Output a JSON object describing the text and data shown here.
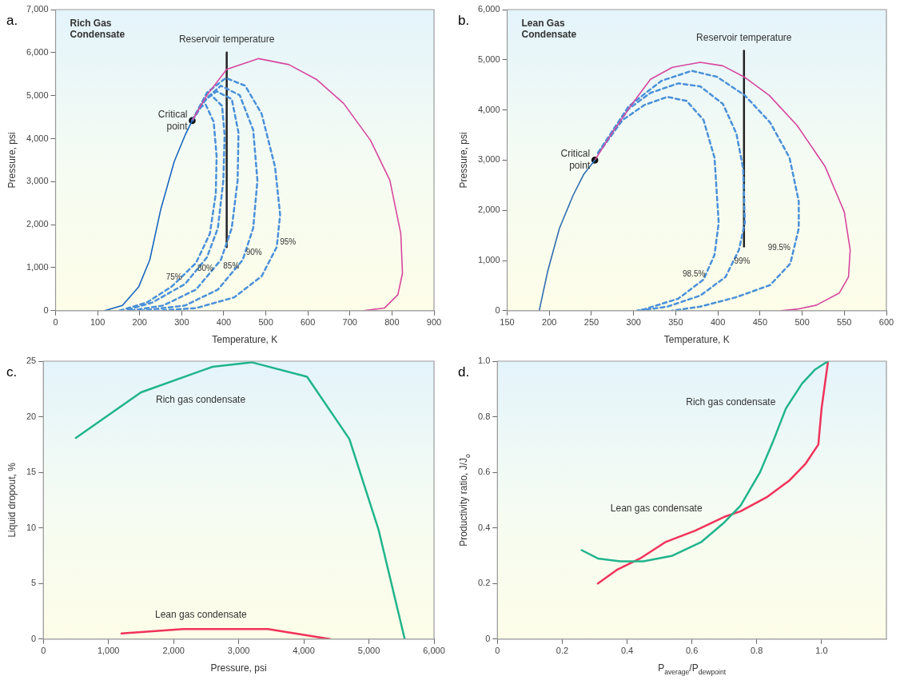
{
  "chart_data": [
    {
      "type": "line",
      "title": "Rich Gas Condensate",
      "xlabel": "Temperature, K",
      "ylabel": "Pressure, psi",
      "xlim": [
        0,
        900
      ],
      "ylim": [
        0,
        7000
      ],
      "xticks": [
        0,
        100,
        200,
        300,
        400,
        500,
        600,
        700,
        800,
        900
      ],
      "yticks": [
        0,
        {
          "value": 1000,
          "label": "1,000"
        },
        {
          "value": 2000,
          "label": "2,000"
        },
        {
          "value": 3000,
          "label": "3,000"
        },
        {
          "value": 4000,
          "label": "4,000"
        },
        {
          "value": 5000,
          "label": "5,000"
        },
        {
          "value": 6000,
          "label": "6,000"
        },
        {
          "value": 7000,
          "label": "7,000"
        }
      ],
      "series": [
        {
          "color": "#1a66c0",
          "x": [
            117,
            159,
            198,
            224,
            250,
            282,
            308,
            325
          ],
          "values": [
            0,
            120,
            560,
            1180,
            2350,
            3460,
            4080,
            4420
          ]
        },
        {
          "color": "#d6479e",
          "x": [
            325,
            360,
            407,
            483,
            555,
            620,
            685,
            749,
            795,
            821,
            825,
            814,
            782,
            733
          ],
          "values": [
            4420,
            5010,
            5610,
            5860,
            5720,
            5380,
            4820,
            3960,
            3030,
            1790,
            870,
            370,
            60,
            0
          ]
        },
        {
          "name": "95%",
          "color": "#4a90d9",
          "line_style": "dashed",
          "x": [
            325,
            360,
            405,
            451,
            490,
            522,
            534,
            526,
            490,
            425,
            334,
            243
          ],
          "values": [
            4420,
            5070,
            5410,
            5230,
            4580,
            3340,
            2230,
            1480,
            800,
            310,
            60,
            0
          ]
        },
        {
          "name": "90%",
          "color": "#4a90d9",
          "line_style": "dashed",
          "x": [
            325,
            360,
            393,
            438,
            470,
            480,
            470,
            445,
            386,
            308,
            204
          ],
          "values": [
            4420,
            4950,
            5230,
            5010,
            4200,
            3030,
            1920,
            1180,
            490,
            120,
            0
          ]
        },
        {
          "name": "85%",
          "color": "#4a90d9",
          "line_style": "dashed",
          "x": [
            325,
            354,
            383,
            419,
            435,
            433,
            419,
            393,
            334,
            256,
            178
          ],
          "values": [
            4420,
            4890,
            5100,
            4920,
            4140,
            3030,
            1920,
            1180,
            490,
            120,
            0
          ]
        },
        {
          "name": "80%",
          "color": "#4a90d9",
          "line_style": "dashed",
          "x": [
            325,
            347,
            370,
            396,
            402,
            399,
            386,
            360,
            308,
            230,
            165
          ],
          "values": [
            4420,
            4820,
            5010,
            4760,
            4080,
            3030,
            1920,
            1240,
            620,
            190,
            0
          ]
        },
        {
          "name": "75%",
          "color": "#4a90d9",
          "line_style": "dashed",
          "x": [
            325,
            344,
            357,
            376,
            383,
            381,
            367,
            334,
            276,
            217,
            152
          ],
          "values": [
            4420,
            4730,
            4790,
            4390,
            3590,
            2720,
            1790,
            1110,
            560,
            190,
            0
          ]
        },
        {
          "name": "Reservoir temperature",
          "color": "#222222",
          "x": [
            407,
            407
          ],
          "values": [
            1480,
            6000
          ]
        },
        {
          "name": "Critical point",
          "type": "scatter",
          "marker": "circle",
          "color": "#111111",
          "x": [
            325
          ],
          "values": [
            4420
          ]
        }
      ],
      "annotations": [
        "a."
      ]
    },
    {
      "type": "line",
      "title": "Lean Gas Condensate",
      "xlabel": "Temperature, K",
      "ylabel": "Pressure, psi",
      "xlim": [
        150,
        600
      ],
      "ylim": [
        0,
        6000
      ],
      "xticks": [
        150,
        200,
        250,
        300,
        350,
        400,
        450,
        500,
        550,
        600
      ],
      "yticks": [
        0,
        {
          "value": 1000,
          "label": "1,000"
        },
        {
          "value": 2000,
          "label": "2,000"
        },
        {
          "value": 3000,
          "label": "3,000"
        },
        {
          "value": 4000,
          "label": "4,000"
        },
        {
          "value": 5000,
          "label": "5,000"
        },
        {
          "value": 6000,
          "label": "6,000"
        }
      ],
      "series": [
        {
          "color": "#2f6db0",
          "x": [
            188,
            198,
            212,
            228,
            241,
            254
          ],
          "values": [
            0,
            780,
            1640,
            2290,
            2720,
            3000
          ]
        },
        {
          "color": "#d6479e",
          "x": [
            254,
            274,
            294,
            320,
            346,
            379,
            406,
            432,
            461,
            494,
            527,
            550,
            557,
            555,
            544,
            517,
            494,
            475
          ],
          "values": [
            3000,
            3530,
            4020,
            4610,
            4850,
            4950,
            4880,
            4650,
            4290,
            3690,
            2880,
            1970,
            1210,
            670,
            350,
            110,
            30,
            0
          ]
        },
        {
          "name": "99.5%",
          "color": "#4a90d9",
          "line_style": "dashed",
          "x": [
            258,
            294,
            333,
            369,
            399,
            432,
            462,
            485,
            496,
            496,
            486,
            462,
            422,
            379,
            346
          ],
          "values": [
            3150,
            4070,
            4580,
            4780,
            4660,
            4290,
            3750,
            3050,
            2180,
            1640,
            940,
            510,
            270,
            80,
            0
          ]
        },
        {
          "name": "99%",
          "color": "#4a90d9",
          "line_style": "dashed",
          "x": [
            258,
            294,
            320,
            353,
            379,
            406,
            422,
            430,
            432,
            425,
            409,
            379,
            340,
            307
          ],
          "values": [
            3150,
            4020,
            4340,
            4530,
            4470,
            4120,
            3530,
            2830,
            1750,
            1210,
            670,
            300,
            80,
            0
          ]
        },
        {
          "name": "98.5%",
          "color": "#4a90d9",
          "line_style": "dashed",
          "x": [
            258,
            287,
            313,
            340,
            363,
            383,
            396,
            401,
            396,
            383,
            353,
            313,
            304
          ],
          "values": [
            3130,
            3800,
            4100,
            4260,
            4180,
            3800,
            3050,
            1750,
            1110,
            620,
            240,
            30,
            0
          ]
        },
        {
          "name": "Reservoir temperature",
          "color": "#222222",
          "x": [
            431,
            431
          ],
          "values": [
            1280,
            5180
          ]
        },
        {
          "name": "Critical point",
          "type": "scatter",
          "marker": "circle",
          "color": "#111111",
          "x": [
            254
          ],
          "values": [
            3000
          ]
        }
      ],
      "annotations": [
        "b."
      ]
    },
    {
      "type": "line",
      "xlabel": "Pressure, psi",
      "ylabel": "Liquid dropout, %",
      "xlim": [
        0,
        6000
      ],
      "ylim": [
        0,
        25
      ],
      "xticks": [
        0,
        {
          "value": 1000,
          "label": "1,000"
        },
        {
          "value": 2000,
          "label": "2,000"
        },
        {
          "value": 3000,
          "label": "3,000"
        },
        {
          "value": 4000,
          "label": "4,000"
        },
        {
          "value": 5000,
          "label": "5,000"
        },
        {
          "value": 6000,
          "label": "6,000"
        }
      ],
      "yticks": [
        0,
        5,
        10,
        15,
        20,
        25
      ],
      "series": [
        {
          "name": "Rich gas condensate",
          "color": "#20b48c",
          "x": [
            500,
            1500,
            2600,
            3200,
            4050,
            4700,
            5150,
            5550
          ],
          "values": [
            18.1,
            22.2,
            24.5,
            24.9,
            23.6,
            18.0,
            9.8,
            0
          ]
        },
        {
          "name": "Lean gas condensate",
          "color": "#f0325a",
          "x": [
            1200,
            2150,
            3450,
            4400
          ],
          "values": [
            0.5,
            0.9,
            0.9,
            0
          ]
        }
      ],
      "annotations": [
        "c."
      ]
    },
    {
      "type": "line",
      "xlabel": "P$_{average}$/P$_{dewpoint}$",
      "ylabel": "Productivity ratio, J/J$_{o}$",
      "xlim": [
        0,
        1.2
      ],
      "ylim": [
        0,
        1
      ],
      "xticks": [
        0,
        0.2,
        0.4,
        0.6,
        0.8,
        {
          "value": 1,
          "label": "1.0"
        }
      ],
      "yticks": [
        0,
        0.2,
        0.4,
        0.6,
        0.8,
        {
          "value": 1,
          "label": "1.0"
        }
      ],
      "series": [
        {
          "name": "Rich gas condensate",
          "color": "#20b48c",
          "x": [
            0.26,
            0.31,
            0.38,
            0.45,
            0.54,
            0.63,
            0.7,
            0.75,
            0.81,
            0.85,
            0.89,
            0.94,
            0.98,
            1.02
          ],
          "values": [
            0.32,
            0.29,
            0.28,
            0.28,
            0.3,
            0.35,
            0.42,
            0.48,
            0.6,
            0.71,
            0.83,
            0.92,
            0.97,
            1.0
          ]
        },
        {
          "name": "Lean gas condensate",
          "color": "#f0325a",
          "x": [
            0.31,
            0.37,
            0.44,
            0.52,
            0.61,
            0.7,
            0.75,
            0.83,
            0.9,
            0.95,
            0.99,
            1.0,
            1.02
          ],
          "values": [
            0.2,
            0.25,
            0.29,
            0.35,
            0.39,
            0.44,
            0.46,
            0.51,
            0.57,
            0.63,
            0.7,
            0.83,
            1.0
          ]
        }
      ],
      "annotations": [
        "d."
      ]
    }
  ]
}
